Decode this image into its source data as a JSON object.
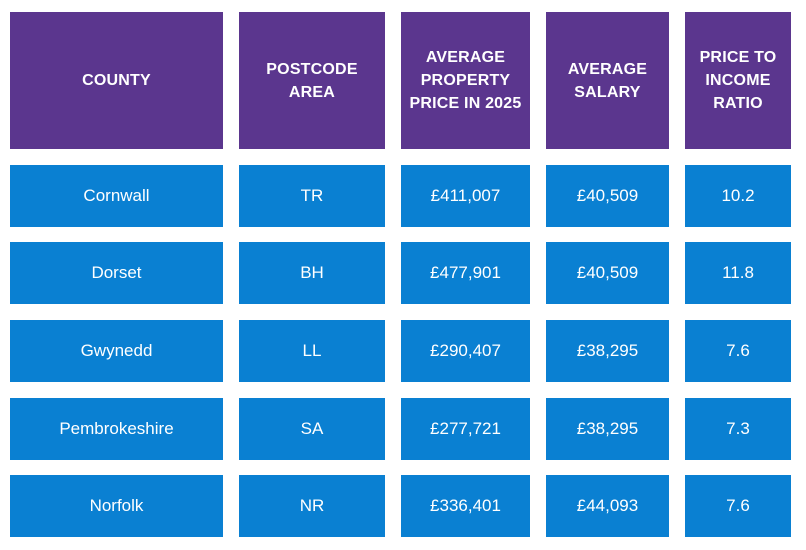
{
  "table": {
    "headers": [
      "COUNTY",
      "POSTCODE AREA",
      "AVERAGE PROPERTY PRICE IN 2025",
      "AVERAGE SALARY",
      "PRICE TO INCOME RATIO"
    ],
    "rows": [
      [
        "Cornwall",
        "TR",
        "£411,007",
        "£40,509",
        "10.2"
      ],
      [
        "Dorset",
        "BH",
        "£477,901",
        "£40,509",
        "11.8"
      ],
      [
        "Gwynedd",
        "LL",
        "£290,407",
        "£38,295",
        "7.6"
      ],
      [
        "Pembrokeshire",
        "SA",
        "£277,721",
        "£38,295",
        "7.3"
      ],
      [
        "Norfolk",
        "NR",
        "£336,401",
        "£44,093",
        "7.6"
      ]
    ]
  },
  "colors": {
    "header_bg": "#5b368e",
    "row_bg": "#0a80d2",
    "text": "#ffffff"
  }
}
